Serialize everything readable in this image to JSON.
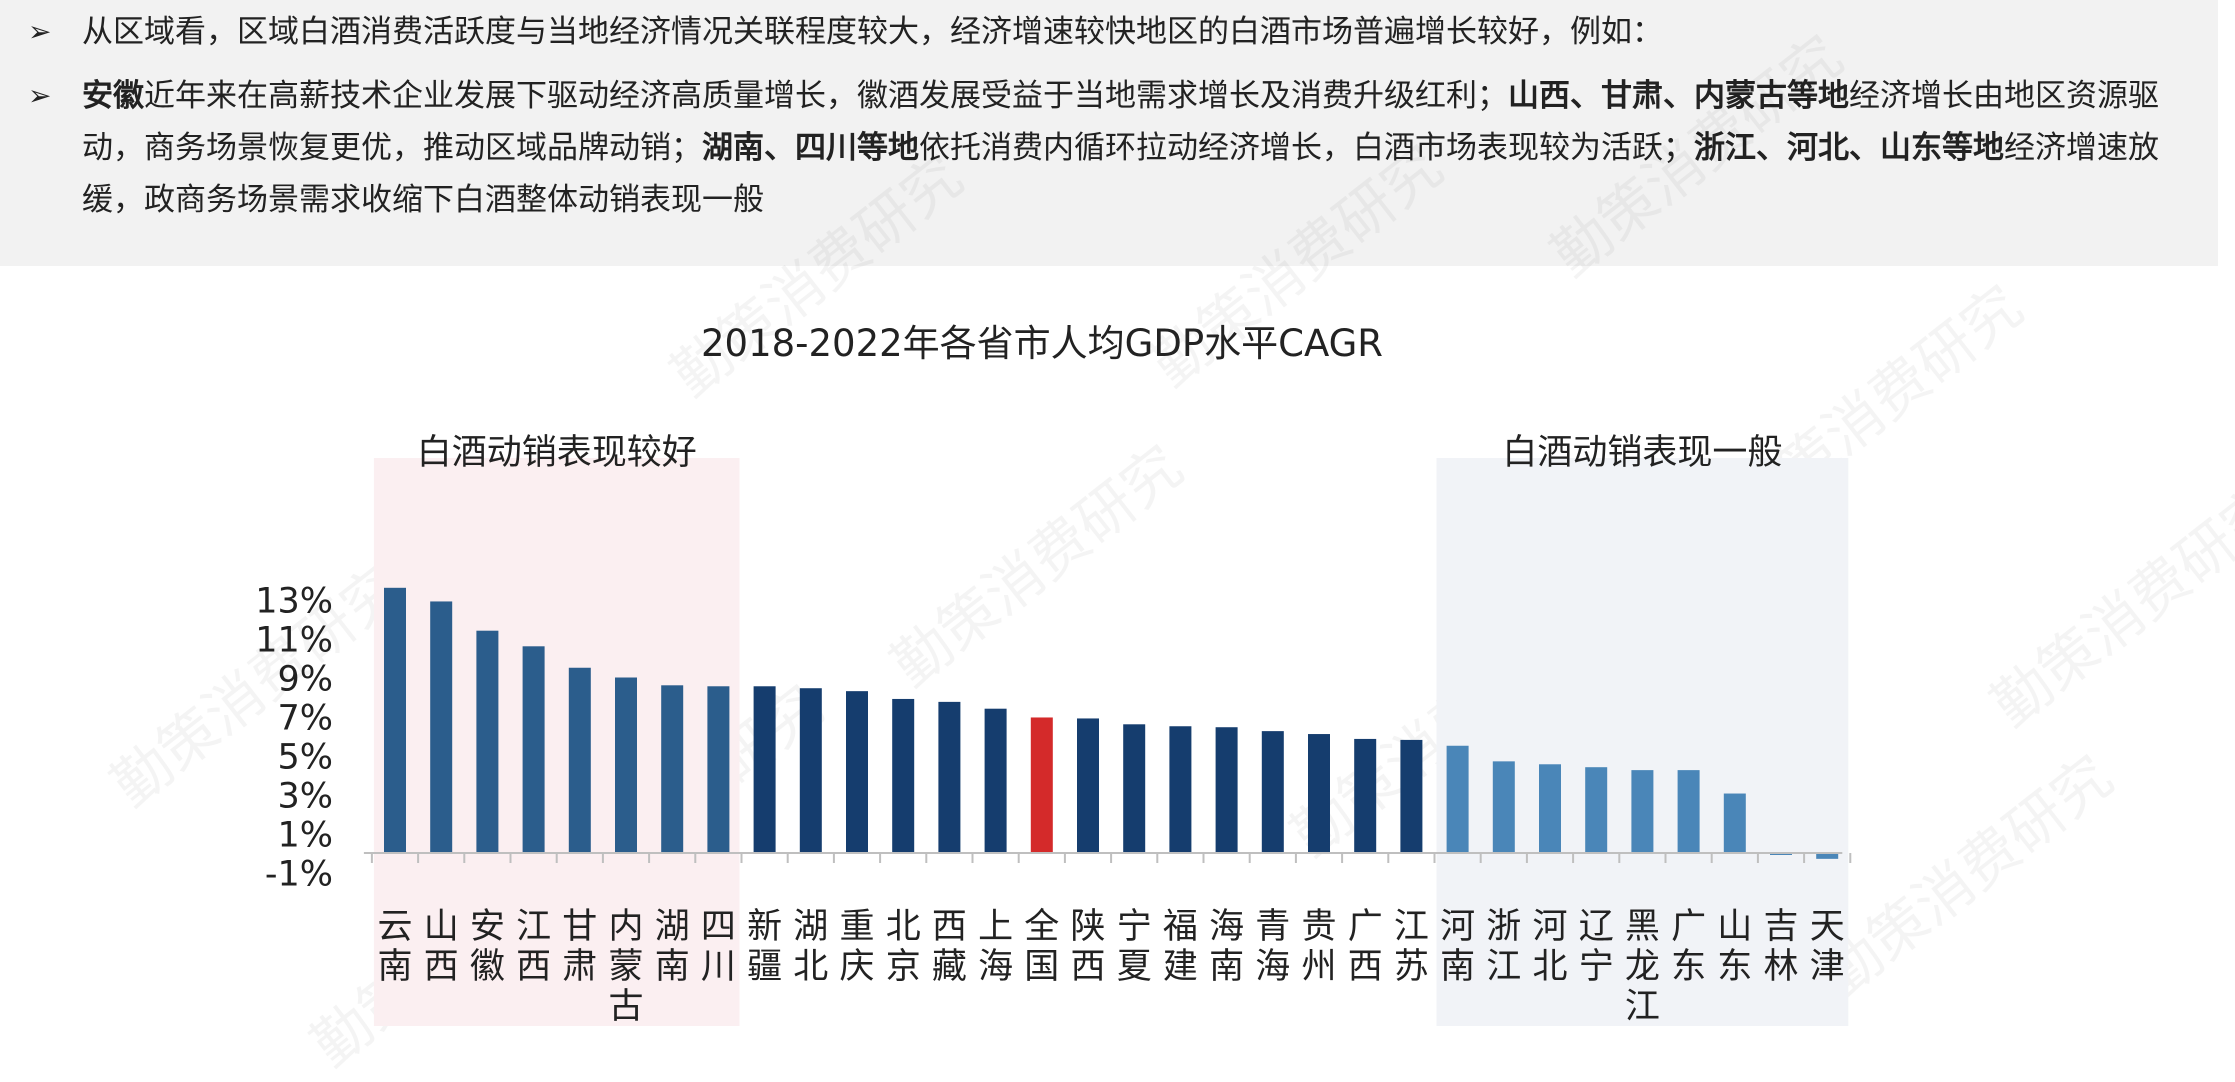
{
  "bullets": [
    [
      {
        "t": "从区域看，区域白酒消费活跃度与当地经济情况关联程度较大，经济增速较快地区的白酒市场普遍增长较好，例如：",
        "b": false
      }
    ],
    [
      {
        "t": "安徽",
        "b": true
      },
      {
        "t": "近年来在高薪技术企业发展下驱动经济高质量增长，徽酒发展受益于当地需求增长及消费升级红利；",
        "b": false
      },
      {
        "t": "山西、甘肃、内蒙古等地",
        "b": true
      },
      {
        "t": "经济增长由地区资源驱动，商务场景恢复更优，推动区域品牌动销；",
        "b": false
      },
      {
        "t": "湖南、四川等地",
        "b": true
      },
      {
        "t": "依托消费内循环拉动经济增长，白酒市场表现较为活跃；",
        "b": false
      },
      {
        "t": "浙江、河北、山东等地",
        "b": true
      },
      {
        "t": "经济增速放缓，政商务场景需求收缩下白酒整体动销表现一般",
        "b": false
      }
    ]
  ],
  "watermark_text": "勤策消费研究",
  "colors": {
    "bar_dark": "#153d6e",
    "bar_mid": "#2b5d8c",
    "bar_light": "#4a86b8",
    "bar_highlight": "#d42a2a",
    "band_good": "#fbeff1",
    "band_bad": "#f1f3f7"
  },
  "chart_data": {
    "type": "bar",
    "title": "2018-2022年各省市人均GDP水平CAGR",
    "categories": [
      "云南",
      "山西",
      "安徽",
      "江西",
      "甘肃",
      "内蒙古",
      "湖南",
      "四川",
      "新疆",
      "湖北",
      "重庆",
      "北京",
      "西藏",
      "上海",
      "全国",
      "陕西",
      "宁夏",
      "福建",
      "海南",
      "青海",
      "贵州",
      "广西",
      "江苏",
      "河南",
      "浙江",
      "河北",
      "辽宁",
      "黑龙江",
      "广东",
      "山东",
      "吉林",
      "天津"
    ],
    "values": [
      13.6,
      12.9,
      11.4,
      10.6,
      9.5,
      9.0,
      8.6,
      8.55,
      8.55,
      8.45,
      8.3,
      7.9,
      7.75,
      7.4,
      6.95,
      6.9,
      6.6,
      6.5,
      6.45,
      6.25,
      6.1,
      5.85,
      5.8,
      5.5,
      4.7,
      4.55,
      4.4,
      4.25,
      4.25,
      3.05,
      0.0,
      -0.3
    ],
    "ylim": [
      -1,
      13.6
    ],
    "yticks": [
      "13%",
      "11%",
      "9%",
      "7%",
      "5%",
      "3%",
      "1%",
      "-1%"
    ],
    "ytick_values": [
      13,
      11,
      9,
      7,
      5,
      3,
      1,
      -1
    ],
    "highlight": "全国",
    "annotations": [
      {
        "text": "白酒动销表现较好",
        "from": 0,
        "to": 7
      },
      {
        "text": "白酒动销表现一般",
        "from": 23,
        "to": 31
      }
    ],
    "grid": false,
    "legend": "none"
  }
}
